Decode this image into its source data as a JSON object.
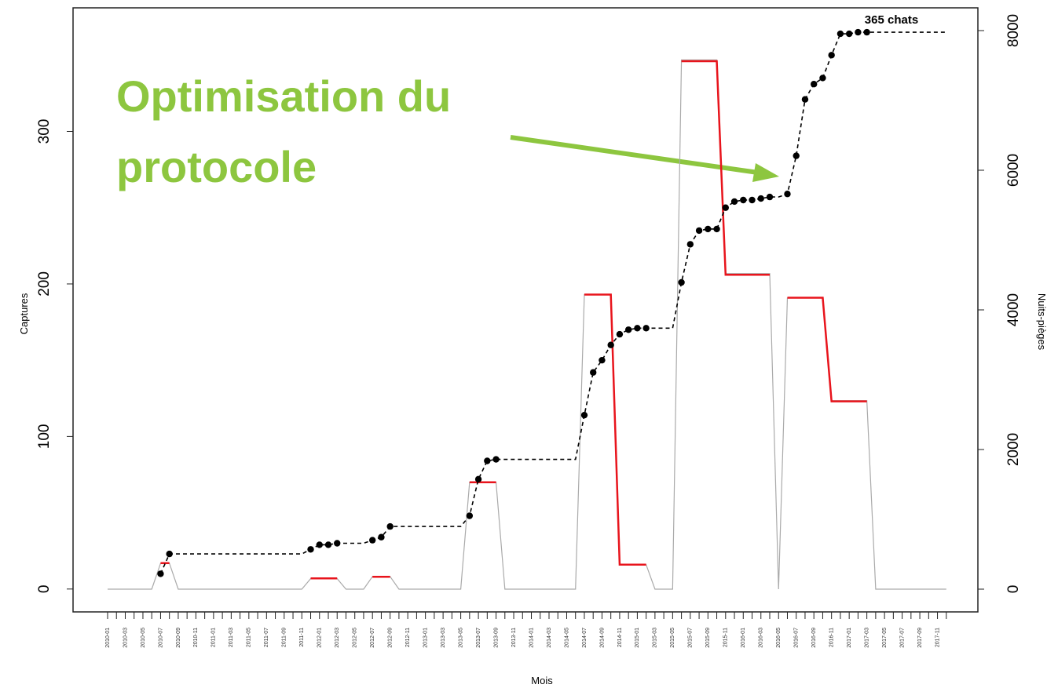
{
  "chart_data": {
    "type": "line",
    "annotations": [
      "365 chats",
      "Optimisation du",
      "protocole"
    ],
    "xlabel": "Mois",
    "ylabel": "Captures",
    "y2label": "Nuits-pièges",
    "categories": [
      "2010-01",
      null,
      "2010-03",
      null,
      "2010-05",
      null,
      "2010-07",
      null,
      "2010-09",
      null,
      "2010-11",
      null,
      "2011-01",
      null,
      "2011-03",
      null,
      "2011-05",
      null,
      "2011-07",
      null,
      "2011-09",
      null,
      "2011-11",
      null,
      "2012-01",
      null,
      "2012-03",
      null,
      "2012-05",
      null,
      "2012-07",
      null,
      "2012-09",
      null,
      "2012-11",
      null,
      "2013-01",
      null,
      "2013-03",
      null,
      "2013-05",
      null,
      "2013-07",
      null,
      "2013-09",
      null,
      "2013-11",
      null,
      "2014-01",
      null,
      "2014-03",
      null,
      "2014-05",
      null,
      "2014-07",
      null,
      "2014-09",
      null,
      "2014-11",
      null,
      "2015-01",
      null,
      "2015-03",
      null,
      "2015-05",
      null,
      "2015-07",
      null,
      "2015-09",
      null,
      "2015-11",
      null,
      "2016-01",
      null,
      "2016-03",
      null,
      "2016-05",
      null,
      "2016-07",
      null,
      "2016-09",
      null,
      "2016-11",
      null,
      "2017-01",
      null,
      "2017-03",
      null,
      "2017-05",
      null,
      "2017-07",
      null,
      "2017-09",
      null,
      "2017-11",
      null
    ],
    "series": [
      {
        "color": "#aaaaaa",
        "axis": "y2",
        "values": [
          0,
          0,
          0,
          0,
          0,
          0,
          370,
          370,
          0,
          0,
          0,
          0,
          0,
          0,
          0,
          0,
          0,
          0,
          0,
          0,
          0,
          0,
          0,
          150,
          150,
          150,
          150,
          0,
          0,
          0,
          180,
          180,
          180,
          0,
          0,
          0,
          0,
          0,
          0,
          0,
          0,
          1530,
          1530,
          1530,
          1530,
          0,
          0,
          0,
          0,
          0,
          0,
          0,
          0,
          0,
          4220,
          4220,
          4220,
          4220,
          350,
          350,
          350,
          350,
          0,
          0,
          0,
          7580,
          7580,
          7580,
          7580,
          7580,
          4520,
          4520,
          4520,
          4520,
          4520,
          4520,
          0,
          4170,
          4170,
          4170,
          4170,
          4170,
          2700,
          2700,
          2700,
          2700,
          2700,
          0,
          0,
          0,
          0,
          0,
          0,
          0,
          0,
          0
        ]
      },
      {
        "color": "#e8141c",
        "values": [
          null,
          null,
          null,
          null,
          null,
          null,
          17,
          17,
          null,
          null,
          null,
          null,
          null,
          null,
          null,
          null,
          null,
          null,
          null,
          null,
          null,
          null,
          null,
          7,
          7,
          7,
          7,
          null,
          null,
          null,
          8,
          8,
          8,
          null,
          null,
          null,
          null,
          null,
          null,
          null,
          null,
          70,
          70,
          70,
          70,
          null,
          null,
          null,
          null,
          null,
          null,
          null,
          null,
          null,
          193,
          193,
          193,
          193,
          16,
          16,
          16,
          16,
          null,
          null,
          null,
          346,
          346,
          346,
          346,
          346,
          206,
          206,
          206,
          206,
          206,
          206,
          null,
          191,
          191,
          191,
          191,
          191,
          123,
          123,
          123,
          123,
          123,
          null,
          null,
          null,
          null,
          null,
          null,
          null,
          null,
          null
        ]
      },
      {
        "color": "#000000",
        "line_style": "dashed",
        "markers": true,
        "values": [
          null,
          null,
          null,
          null,
          null,
          null,
          10,
          23,
          23,
          23,
          23,
          23,
          23,
          23,
          23,
          23,
          23,
          23,
          23,
          23,
          23,
          23,
          23,
          26,
          29,
          29,
          30,
          30,
          30,
          30,
          32,
          34,
          41,
          41,
          41,
          41,
          41,
          41,
          41,
          41,
          41,
          48,
          72,
          84,
          85,
          85,
          85,
          85,
          85,
          85,
          85,
          85,
          85,
          85,
          114,
          142,
          150,
          160,
          167,
          170,
          171,
          171,
          171,
          171,
          171,
          201,
          226,
          235,
          236,
          236,
          250,
          254,
          255,
          255,
          256,
          257,
          257,
          259,
          284,
          321,
          331,
          335,
          350,
          364,
          364,
          365,
          365,
          365,
          365,
          365,
          365,
          365,
          365,
          365,
          365,
          365
        ]
      }
    ],
    "ylim": [
      -15,
      381
    ],
    "yticks": [
      0,
      100,
      200,
      300
    ],
    "y2lim": [
      -326,
      8326
    ],
    "y2ticks": [
      0,
      2000,
      4000,
      6000,
      8000
    ]
  }
}
